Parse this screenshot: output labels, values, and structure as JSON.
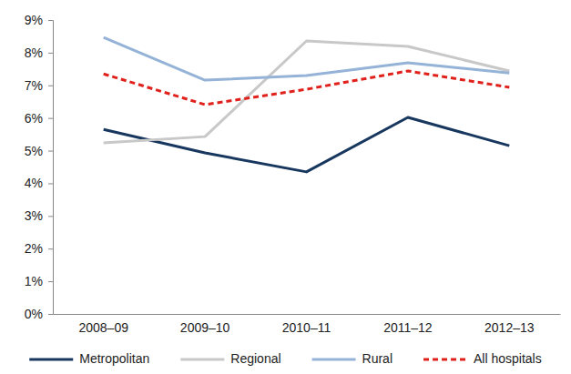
{
  "chart_data": {
    "type": "line",
    "categories": [
      "2008–09",
      "2009–10",
      "2010–11",
      "2011–12",
      "2012–13"
    ],
    "series": [
      {
        "name": "Metropolitan",
        "color": "#17375e",
        "values": [
          5.65,
          4.93,
          4.35,
          6.02,
          5.15
        ]
      },
      {
        "name": "Regional",
        "color": "#c8c8c8",
        "values": [
          5.24,
          5.43,
          8.36,
          8.19,
          7.44
        ]
      },
      {
        "name": "Rural",
        "color": "#95b3d7",
        "values": [
          8.47,
          7.16,
          7.3,
          7.69,
          7.38
        ]
      },
      {
        "name": "All hospitals",
        "color": "#e0201b",
        "line_style": "dashed",
        "values": [
          7.35,
          6.41,
          6.88,
          7.44,
          6.94
        ]
      }
    ],
    "ylim": [
      0,
      9
    ],
    "yticks": [
      {
        "value": 0,
        "label": "0%"
      },
      {
        "value": 1,
        "label": "1%"
      },
      {
        "value": 2,
        "label": "2%"
      },
      {
        "value": 3,
        "label": "3%"
      },
      {
        "value": 4,
        "label": "4%"
      },
      {
        "value": 5,
        "label": "5%"
      },
      {
        "value": 6,
        "label": "6%"
      },
      {
        "value": 7,
        "label": "7%"
      },
      {
        "value": 8,
        "label": "8%"
      },
      {
        "value": 9,
        "label": "9%"
      }
    ],
    "grid": false,
    "legend": "bottom"
  }
}
